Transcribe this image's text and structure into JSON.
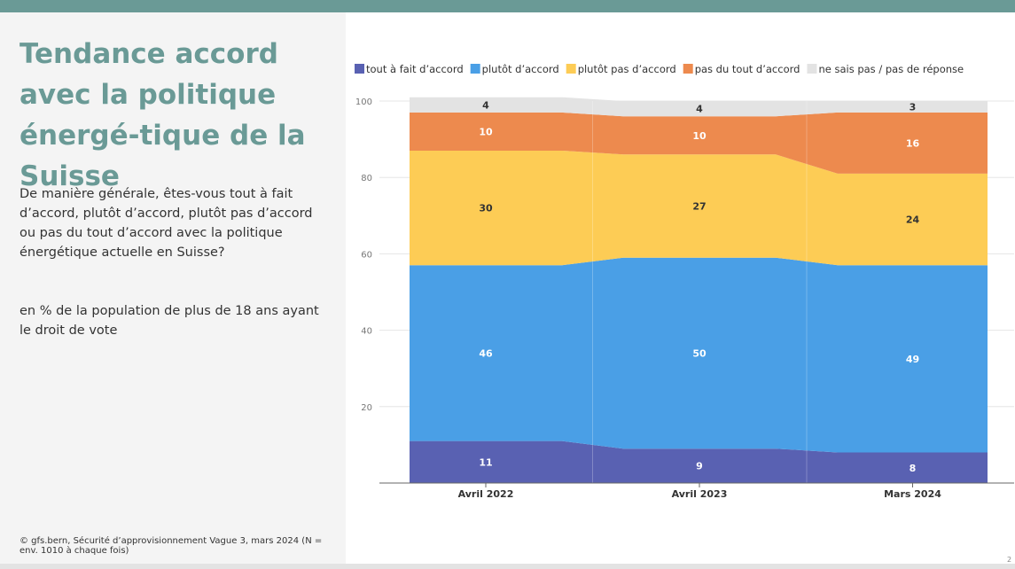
{
  "title": "Tendance accord avec la politique énergé-tique de la Suisse",
  "question": "De manière générale, êtes-vous tout à fait d’accord, plutôt d’accord, plutôt pas d’accord ou pas du tout d’accord avec la politique énergétique actuelle en Suisse?",
  "population": "en % de la population de plus de 18 ans ayant le droit de vote",
  "source": "© gfs.bern, Sécurité d’approvisionnement Vague 3, mars 2024 (N = env. 1010 à chaque fois)",
  "page_number": "2",
  "chart_data": {
    "type": "area",
    "stacked": true,
    "title": "",
    "xlabel": "",
    "ylabel": "",
    "categories": [
      "Avril 2022",
      "Avril 2023",
      "Mars 2024"
    ],
    "ylim": [
      0,
      100
    ],
    "yticks": [
      20,
      40,
      60,
      80,
      100
    ],
    "grid": true,
    "legend_position": "top",
    "series": [
      {
        "name": "tout à fait d’accord",
        "values": [
          11,
          9,
          8
        ],
        "color": "#5961b2",
        "label_color": "#ffffff"
      },
      {
        "name": "plutôt d’accord",
        "values": [
          46,
          50,
          49
        ],
        "color": "#4a9fe6",
        "label_color": "#ffffff"
      },
      {
        "name": "plutôt pas d’accord",
        "values": [
          30,
          27,
          24
        ],
        "color": "#fdcc55",
        "label_color": "#333333"
      },
      {
        "name": "pas du tout d’accord",
        "values": [
          10,
          10,
          16
        ],
        "color": "#ed8a4e",
        "label_color": "#ffffff"
      },
      {
        "name": "ne sais pas / pas de réponse",
        "values": [
          4,
          4,
          3
        ],
        "color": "#e3e3e3",
        "label_color": "#333333"
      }
    ]
  }
}
